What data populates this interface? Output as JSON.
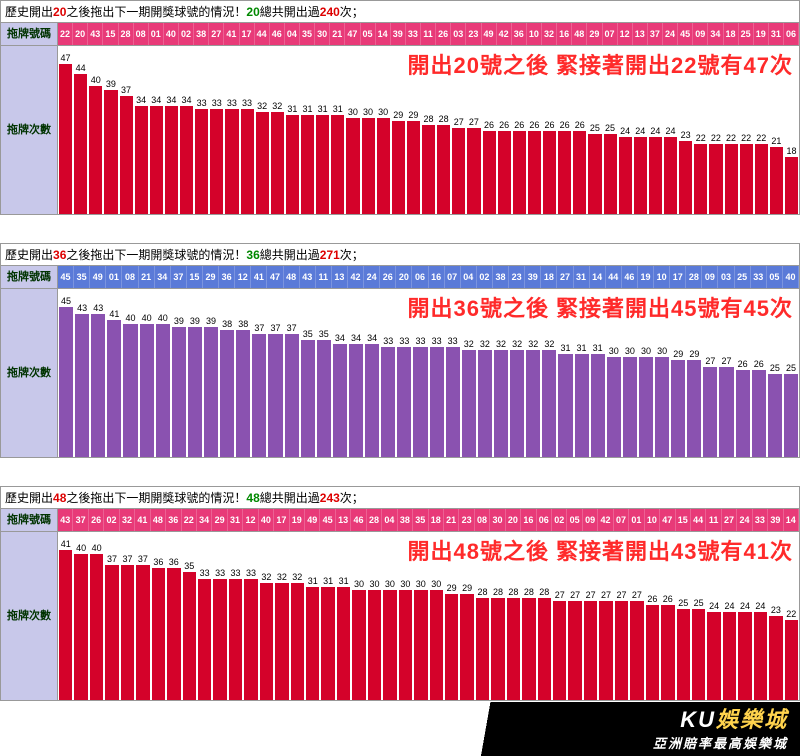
{
  "charts": [
    {
      "drawn": "20",
      "total": "240",
      "header_prefix": "歷史開出",
      "header_mid": "之後拖出下一期開獎球號的情況！",
      "header_suffix1": "總共開出過",
      "header_suffix2": "次；",
      "row_label1": "拖牌號碼",
      "row_label2": "拖牌次數",
      "annotation": "開出20號之後 緊接著開出22號有47次",
      "header_bg": "#e83a78",
      "bar_color": "#d4022a",
      "numbers": [
        "22",
        "20",
        "43",
        "15",
        "28",
        "08",
        "01",
        "40",
        "02",
        "38",
        "27",
        "41",
        "17",
        "44",
        "46",
        "04",
        "35",
        "30",
        "21",
        "47",
        "05",
        "14",
        "39",
        "33",
        "11",
        "26",
        "03",
        "23",
        "49",
        "42",
        "36",
        "10",
        "32",
        "16",
        "48",
        "29",
        "07",
        "12",
        "13",
        "37",
        "24",
        "45",
        "09",
        "34",
        "18",
        "25",
        "19",
        "31",
        "06"
      ],
      "values": [
        47,
        44,
        40,
        39,
        37,
        34,
        34,
        34,
        34,
        33,
        33,
        33,
        33,
        32,
        32,
        31,
        31,
        31,
        31,
        30,
        30,
        30,
        29,
        29,
        28,
        28,
        27,
        27,
        26,
        26,
        26,
        26,
        26,
        26,
        26,
        25,
        25,
        24,
        24,
        24,
        24,
        23,
        22,
        22,
        22,
        22,
        22,
        21,
        18
      ],
      "max": 47
    },
    {
      "drawn": "36",
      "total": "271",
      "header_prefix": "歷史開出",
      "header_mid": "之後拖出下一期開獎球號的情況！",
      "header_suffix1": "總共開出過",
      "header_suffix2": "次；",
      "row_label1": "拖牌號碼",
      "row_label2": "拖牌次數",
      "annotation": "開出36號之後 緊接著開出45號有45次",
      "header_bg": "#5a7ad8",
      "bar_color": "#8a52b0",
      "numbers": [
        "45",
        "35",
        "49",
        "01",
        "08",
        "21",
        "34",
        "37",
        "15",
        "29",
        "36",
        "12",
        "41",
        "47",
        "48",
        "43",
        "11",
        "13",
        "42",
        "24",
        "26",
        "20",
        "06",
        "16",
        "07",
        "04",
        "02",
        "38",
        "23",
        "39",
        "18",
        "27",
        "31",
        "14",
        "44",
        "46",
        "19",
        "10",
        "17",
        "28",
        "09",
        "03",
        "25",
        "33",
        "05",
        "40"
      ],
      "values": [
        45,
        43,
        43,
        41,
        40,
        40,
        40,
        39,
        39,
        39,
        38,
        38,
        37,
        37,
        37,
        35,
        35,
        34,
        34,
        34,
        33,
        33,
        33,
        33,
        33,
        32,
        32,
        32,
        32,
        32,
        32,
        31,
        31,
        31,
        30,
        30,
        30,
        30,
        29,
        29,
        27,
        27,
        26,
        26,
        25,
        25
      ],
      "max": 45
    },
    {
      "drawn": "48",
      "total": "243",
      "header_prefix": "歷史開出",
      "header_mid": "之後拖出下一期開獎球號的情況！",
      "header_suffix1": "總共開出過",
      "header_suffix2": "次；",
      "row_label1": "拖牌號碼",
      "row_label2": "拖牌次數",
      "annotation": "開出48號之後 緊接著開出43號有41次",
      "header_bg": "#e83a78",
      "bar_color": "#d4022a",
      "numbers": [
        "43",
        "37",
        "26",
        "02",
        "32",
        "41",
        "48",
        "36",
        "22",
        "34",
        "29",
        "31",
        "12",
        "40",
        "17",
        "19",
        "49",
        "45",
        "13",
        "46",
        "28",
        "04",
        "38",
        "35",
        "18",
        "21",
        "23",
        "08",
        "30",
        "20",
        "16",
        "06",
        "02",
        "05",
        "09",
        "42",
        "07",
        "01",
        "10",
        "47",
        "15",
        "44",
        "11",
        "27",
        "24",
        "33",
        "39",
        "14"
      ],
      "values": [
        41,
        40,
        40,
        37,
        37,
        37,
        36,
        36,
        35,
        33,
        33,
        33,
        33,
        32,
        32,
        32,
        31,
        31,
        31,
        30,
        30,
        30,
        30,
        30,
        30,
        29,
        29,
        28,
        28,
        28,
        28,
        28,
        27,
        27,
        27,
        27,
        27,
        27,
        26,
        26,
        25,
        25,
        24,
        24,
        24,
        24,
        23,
        22
      ],
      "max": 41
    }
  ],
  "banner": {
    "brand_prefix": "KU",
    "brand": "娛樂城",
    "tagline": "亞洲賠率最高娛樂城"
  }
}
